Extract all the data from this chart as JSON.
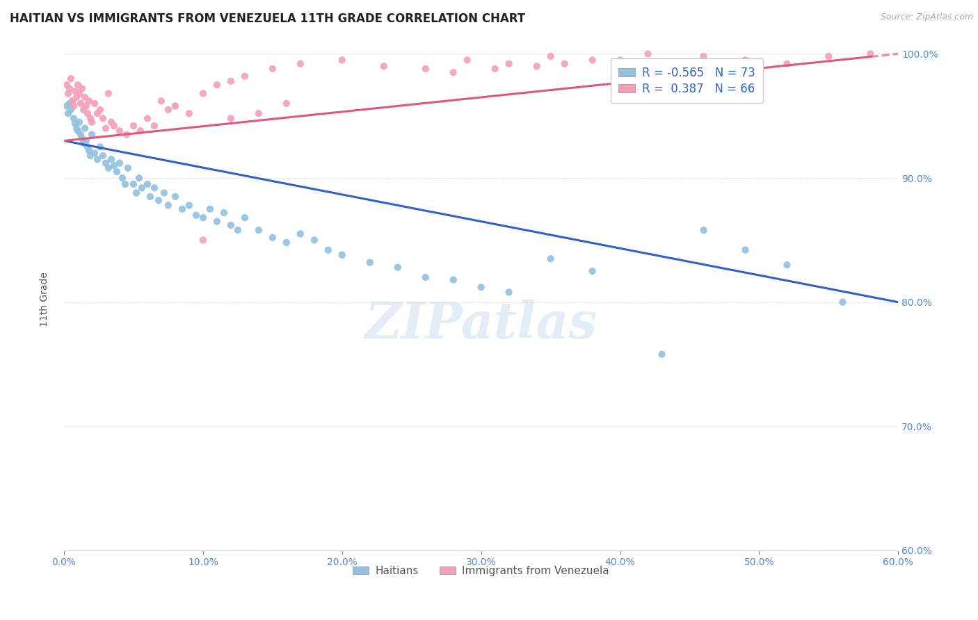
{
  "title": "HAITIAN VS IMMIGRANTS FROM VENEZUELA 11TH GRADE CORRELATION CHART",
  "source_text": "Source: ZipAtlas.com",
  "ylabel": "11th Grade",
  "xlim": [
    0.0,
    0.6
  ],
  "ylim": [
    0.6,
    1.005
  ],
  "xtick_labels": [
    "0.0%",
    "10.0%",
    "20.0%",
    "30.0%",
    "40.0%",
    "50.0%",
    "60.0%"
  ],
  "xtick_vals": [
    0.0,
    0.1,
    0.2,
    0.3,
    0.4,
    0.5,
    0.6
  ],
  "ytick_labels": [
    "60.0%",
    "70.0%",
    "80.0%",
    "90.0%",
    "100.0%"
  ],
  "ytick_vals": [
    0.6,
    0.7,
    0.8,
    0.9,
    1.0
  ],
  "blue_color": "#92C0E0",
  "pink_color": "#F4A0B8",
  "blue_line_color": "#3060CC",
  "pink_line_color": "#E05878",
  "watermark": "ZIPatlas",
  "legend_R1": "-0.565",
  "legend_N1": "73",
  "legend_R2": "0.387",
  "legend_N2": "66",
  "legend_label1": "Haitians",
  "legend_label2": "Immigrants from Venezuela",
  "blue_x": [
    0.002,
    0.003,
    0.004,
    0.005,
    0.006,
    0.007,
    0.008,
    0.009,
    0.01,
    0.011,
    0.012,
    0.013,
    0.014,
    0.015,
    0.016,
    0.017,
    0.018,
    0.019,
    0.02,
    0.022,
    0.024,
    0.026,
    0.028,
    0.03,
    0.032,
    0.034,
    0.036,
    0.038,
    0.04,
    0.042,
    0.044,
    0.046,
    0.05,
    0.052,
    0.054,
    0.056,
    0.06,
    0.062,
    0.065,
    0.068,
    0.072,
    0.075,
    0.08,
    0.085,
    0.09,
    0.095,
    0.1,
    0.105,
    0.11,
    0.115,
    0.12,
    0.125,
    0.13,
    0.14,
    0.15,
    0.16,
    0.17,
    0.18,
    0.19,
    0.2,
    0.22,
    0.24,
    0.26,
    0.28,
    0.3,
    0.32,
    0.35,
    0.38,
    0.43,
    0.46,
    0.49,
    0.52,
    0.56
  ],
  "blue_y": [
    0.958,
    0.952,
    0.96,
    0.955,
    0.962,
    0.948,
    0.944,
    0.94,
    0.938,
    0.945,
    0.935,
    0.932,
    0.928,
    0.94,
    0.93,
    0.925,
    0.922,
    0.918,
    0.935,
    0.92,
    0.915,
    0.925,
    0.918,
    0.912,
    0.908,
    0.915,
    0.91,
    0.905,
    0.912,
    0.9,
    0.895,
    0.908,
    0.895,
    0.888,
    0.9,
    0.892,
    0.895,
    0.885,
    0.892,
    0.882,
    0.888,
    0.878,
    0.885,
    0.875,
    0.878,
    0.87,
    0.868,
    0.875,
    0.865,
    0.872,
    0.862,
    0.858,
    0.868,
    0.858,
    0.852,
    0.848,
    0.855,
    0.85,
    0.842,
    0.838,
    0.832,
    0.828,
    0.82,
    0.818,
    0.812,
    0.808,
    0.835,
    0.825,
    0.758,
    0.858,
    0.842,
    0.83,
    0.8
  ],
  "pink_x": [
    0.002,
    0.003,
    0.004,
    0.005,
    0.006,
    0.007,
    0.008,
    0.009,
    0.01,
    0.011,
    0.012,
    0.013,
    0.014,
    0.015,
    0.016,
    0.017,
    0.018,
    0.019,
    0.02,
    0.022,
    0.024,
    0.026,
    0.028,
    0.03,
    0.032,
    0.034,
    0.036,
    0.04,
    0.045,
    0.05,
    0.055,
    0.06,
    0.065,
    0.07,
    0.075,
    0.08,
    0.09,
    0.1,
    0.11,
    0.12,
    0.13,
    0.15,
    0.17,
    0.2,
    0.23,
    0.26,
    0.29,
    0.32,
    0.35,
    0.38,
    0.42,
    0.46,
    0.49,
    0.52,
    0.55,
    0.58,
    0.1,
    0.12,
    0.08,
    0.14,
    0.16,
    0.28,
    0.31,
    0.34,
    0.36,
    0.4
  ],
  "pink_y": [
    0.975,
    0.968,
    0.972,
    0.98,
    0.962,
    0.958,
    0.97,
    0.965,
    0.975,
    0.968,
    0.96,
    0.972,
    0.955,
    0.965,
    0.958,
    0.952,
    0.962,
    0.948,
    0.945,
    0.96,
    0.952,
    0.955,
    0.948,
    0.94,
    0.968,
    0.945,
    0.942,
    0.938,
    0.935,
    0.942,
    0.938,
    0.948,
    0.942,
    0.962,
    0.955,
    0.958,
    0.952,
    0.968,
    0.975,
    0.978,
    0.982,
    0.988,
    0.992,
    0.995,
    0.99,
    0.988,
    0.995,
    0.992,
    0.998,
    0.995,
    1.0,
    0.998,
    0.995,
    0.992,
    0.998,
    1.0,
    0.85,
    0.948,
    0.958,
    0.952,
    0.96,
    0.985,
    0.988,
    0.99,
    0.992,
    0.995
  ],
  "title_fontsize": 12,
  "axis_label_fontsize": 10,
  "tick_fontsize": 10,
  "background_color": "#FFFFFF",
  "grid_color": "#CCCCCC",
  "blue_trend_x0": 0.0,
  "blue_trend_y0": 0.93,
  "blue_trend_x1": 0.6,
  "blue_trend_y1": 0.8,
  "pink_trend_x0": 0.0,
  "pink_trend_y0": 0.93,
  "pink_trend_x1": 0.6,
  "pink_trend_y1": 1.0
}
